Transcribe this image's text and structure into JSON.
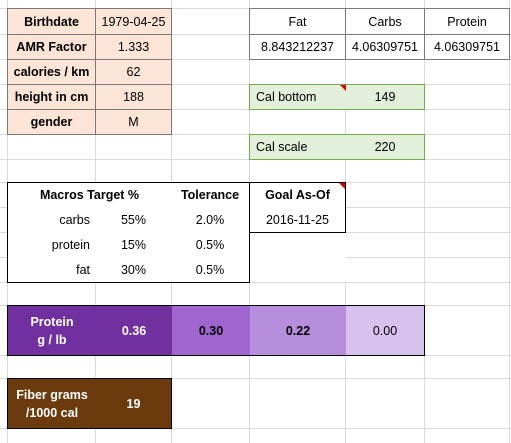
{
  "profile": {
    "birthdate_label": "Birthdate",
    "birthdate_value": "1979-04-25",
    "amr_label": "AMR Factor",
    "amr_value": "1.333",
    "calories_label": "calories / km",
    "calories_value": "62",
    "height_label": "height in cm",
    "height_value": "188",
    "gender_label": "gender",
    "gender_value": "M"
  },
  "ratios": {
    "headers": [
      "Fat",
      "Carbs",
      "Protein"
    ],
    "values": [
      "8.843212237",
      "4.06309751",
      "4.06309751"
    ]
  },
  "cal_bottom": {
    "label": "Cal bottom",
    "value": "149"
  },
  "cal_scale": {
    "label": "Cal scale",
    "value": "220"
  },
  "macros": {
    "header_target": "Macros Target %",
    "header_tolerance": "Tolerance",
    "header_goal": "Goal As-Of",
    "goal_date": "2016-11-25",
    "rows": [
      {
        "name": "carbs",
        "target": "55%",
        "tolerance": "2.0%"
      },
      {
        "name": "protein",
        "target": "15%",
        "tolerance": "0.5%"
      },
      {
        "name": "fat",
        "target": "30%",
        "tolerance": "0.5%"
      }
    ]
  },
  "protein": {
    "label_line1": "Protein",
    "label_line2": "g / lb",
    "values": [
      "0.36",
      "0.30",
      "0.22",
      "0.00"
    ],
    "colors": [
      "#7030a0",
      "#a065cf",
      "#b68edc",
      "#d9c1ee"
    ]
  },
  "fiber": {
    "label_line1": "Fiber grams",
    "label_line2": "/1000 cal",
    "value": "19",
    "color": "#6b3b0e"
  }
}
